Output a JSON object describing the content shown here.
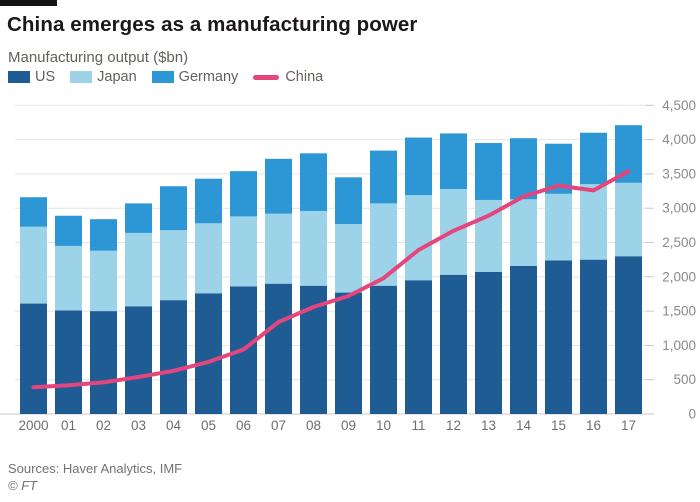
{
  "header": {
    "title": "China emerges as a manufacturing power",
    "subtitle": "Manufacturing output ($bn)"
  },
  "chart_data": {
    "type": "bar",
    "stacked": true,
    "title": "China emerges as a manufacturing power",
    "subtitle": "Manufacturing output ($bn)",
    "categories": [
      "2000",
      "01",
      "02",
      "03",
      "04",
      "05",
      "06",
      "07",
      "08",
      "09",
      "10",
      "11",
      "12",
      "13",
      "14",
      "15",
      "16",
      "17"
    ],
    "series": [
      {
        "name": "US",
        "type": "bar",
        "color": "#1f5c93",
        "values": [
          1610,
          1510,
          1500,
          1570,
          1660,
          1760,
          1860,
          1900,
          1870,
          1770,
          1870,
          1950,
          2030,
          2070,
          2160,
          2240,
          2250,
          2300
        ]
      },
      {
        "name": "Japan",
        "type": "bar",
        "color": "#9dd3e8",
        "values": [
          1120,
          940,
          880,
          1070,
          1020,
          1020,
          1020,
          1020,
          1090,
          1000,
          1200,
          1240,
          1250,
          1050,
          970,
          970,
          1100,
          1070
        ]
      },
      {
        "name": "Germany",
        "type": "bar",
        "color": "#2d96d5",
        "values": [
          430,
          440,
          460,
          430,
          640,
          650,
          660,
          800,
          840,
          680,
          770,
          840,
          810,
          830,
          890,
          730,
          750,
          840
        ]
      },
      {
        "name": "China",
        "type": "line",
        "color": "#e5457d",
        "values": [
          390,
          420,
          460,
          540,
          630,
          760,
          940,
          1340,
          1560,
          1720,
          1980,
          2390,
          2670,
          2890,
          3170,
          3330,
          3260,
          3540
        ]
      }
    ],
    "xlabel": "",
    "ylabel": "",
    "ylim": [
      0,
      4500
    ],
    "ytick_step": 500,
    "yticks": [
      0,
      500,
      1000,
      1500,
      2000,
      2500,
      3000,
      3500,
      4000,
      4500
    ],
    "grid": true,
    "yaxis_side": "right",
    "legend_position": "top"
  },
  "style": {
    "grid_color": "#e4e4e4",
    "axis_color": "#c9c9c9",
    "tick_color": "#c9c9c9",
    "ylabel_color": "#8a8a8a",
    "xlabel_color": "#6e6e6e",
    "accent_bar_color": "#131313"
  },
  "footer": {
    "sources": "Sources: Haver Analytics, IMF",
    "copyright": "© FT"
  }
}
